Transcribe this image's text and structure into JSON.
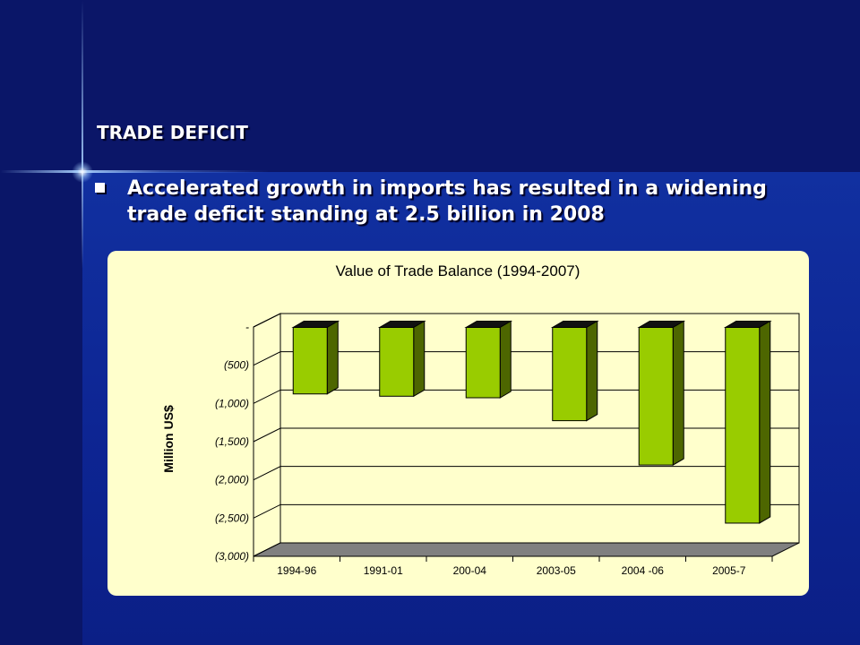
{
  "slide": {
    "heading": "TRADE DEFICIT",
    "bullet": "Accelerated growth in imports has resulted in a widening trade deficit standing at 2.5 billion in 2008"
  },
  "colors": {
    "background": "#0d2593",
    "panel": "#ffffcc",
    "bar_front": "#99cc00",
    "bar_side": "#4d6600",
    "bar_top": "#111111",
    "floor": "#808080"
  },
  "chart_data": {
    "type": "bar",
    "title": "Value of Trade Balance (1994-2007)",
    "ylabel": "Million US$",
    "xlabel": "",
    "categories": [
      "1994-96",
      "1991-01",
      "200-04",
      "2003-05",
      "2004 -06",
      "2005-7"
    ],
    "values": [
      -870,
      -900,
      -920,
      -1220,
      -1800,
      -2560
    ],
    "ylim": [
      -3000,
      0
    ],
    "yticks": [
      0,
      -500,
      -1000,
      -1500,
      -2000,
      -2500,
      -3000
    ],
    "ytick_labels": [
      "-",
      "(500)",
      "(1,000)",
      "(1,500)",
      "(2,000)",
      "(2,500)",
      "(3,000)"
    ],
    "grid": true,
    "legend": "none",
    "style": "3d-column"
  }
}
